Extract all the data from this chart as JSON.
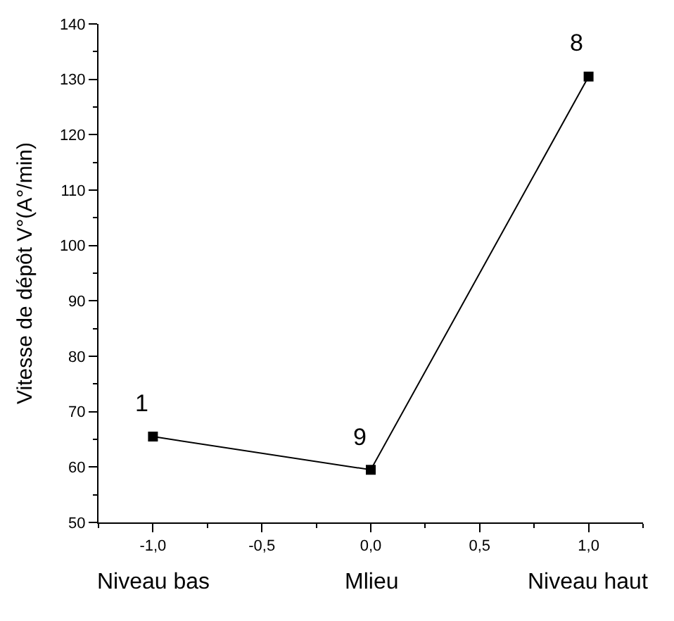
{
  "chart_data": {
    "type": "line",
    "ylabel": "Vitesse de dépôt V°(A°/min)",
    "x": [
      -1.0,
      0.0,
      1.0
    ],
    "series": [
      {
        "color": "#000000",
        "values": [
          65.5,
          59.5,
          130.5
        ]
      }
    ],
    "xlim": [
      -1.25,
      1.25
    ],
    "xticks": [
      {
        "value": -1.0,
        "label": "-1,0"
      },
      {
        "value": -0.5,
        "label": "-0,5"
      },
      {
        "value": 0.0,
        "label": "0,0"
      },
      {
        "value": 0.5,
        "label": "0,5"
      },
      {
        "value": 1.0,
        "label": "1,0"
      }
    ],
    "ylim": [
      50,
      140
    ],
    "yticks": [
      50,
      60,
      70,
      80,
      90,
      100,
      110,
      120,
      130,
      140
    ],
    "marker": "square",
    "line_style": "solid",
    "annotations": [
      {
        "text": "1",
        "x": -1.0,
        "y": 65.5
      },
      {
        "text": "9",
        "x": 0.0,
        "y": 59.5
      },
      {
        "text": "8",
        "x": 1.0,
        "y": 130.5
      },
      "Niveau bas",
      "Mlieu",
      "Niveau haut"
    ]
  }
}
